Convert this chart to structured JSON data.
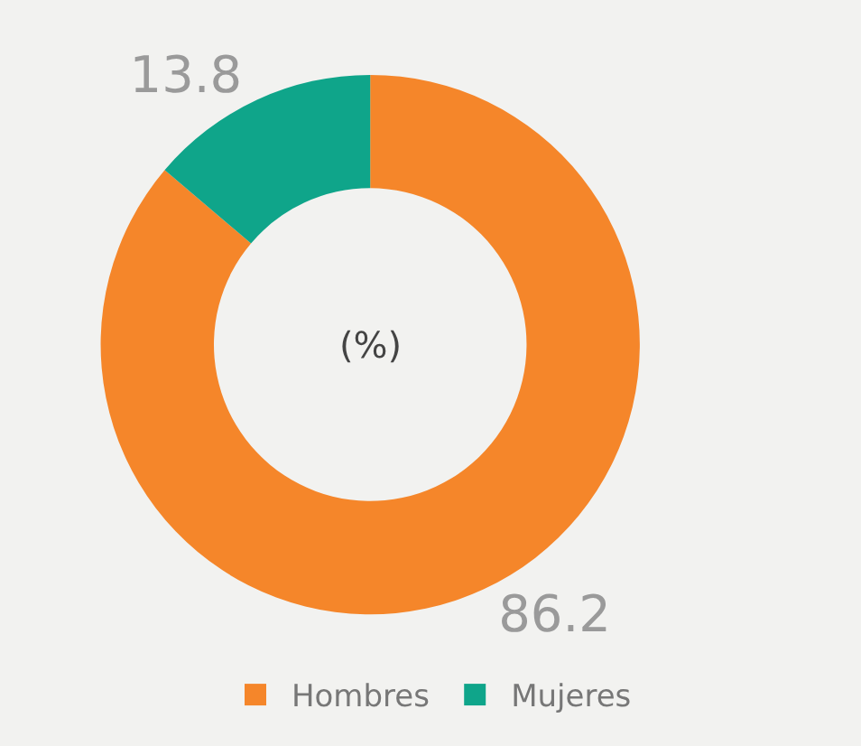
{
  "chart_data": {
    "type": "donut",
    "categories": [
      "Hombres",
      "Mujeres"
    ],
    "values": [
      86.2,
      13.8
    ],
    "colors": [
      "#f5862a",
      "#0fa58a"
    ],
    "data_labels": true,
    "legend": "bottom",
    "annotations": [
      "(%)"
    ]
  }
}
